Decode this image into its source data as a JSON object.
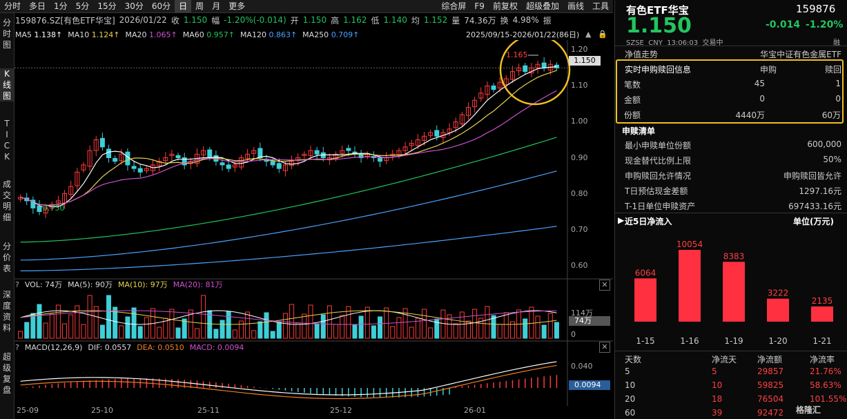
{
  "toolbar": {
    "items": [
      "分时",
      "多日",
      "1分",
      "5分",
      "15分",
      "30分",
      "60分",
      "日",
      "周",
      "月",
      "更多"
    ],
    "right": [
      "综合屏",
      "F9",
      "前复权",
      "超级叠加",
      "画线",
      "工具"
    ],
    "active": "日"
  },
  "sidebar": [
    "分时图",
    "K线图",
    "TICK",
    "成交明细",
    "分价表",
    "深度资料",
    "超级复盘"
  ],
  "header": {
    "code": "159876.SZ[有色ETF华宝]",
    "date": "2026/01/22",
    "close_label": "收",
    "close": "1.150",
    "change_label": "幅",
    "change": "-1.20%(-0.014)",
    "open_label": "开",
    "open": "1.150",
    "high_label": "高",
    "high": "1.162",
    "low_label": "低",
    "low": "1.140",
    "avg_label": "均",
    "avg": "1.152",
    "vol_label": "量",
    "vol": "74.36万",
    "turnover_label": "换",
    "turnover": "4.98%",
    "more": "振",
    "range": "2025/09/15-2026/01/22(86日)"
  },
  "ma": [
    {
      "label": "MA5",
      "value": "1.138↑",
      "color": "#ffffff"
    },
    {
      "label": "MA10",
      "value": "1.124↑",
      "color": "#e8d44d"
    },
    {
      "label": "MA20",
      "value": "1.065↑",
      "color": "#d050d0"
    },
    {
      "label": "MA60",
      "value": "0.957↑",
      "color": "#22c55e"
    },
    {
      "label": "MA120",
      "value": "0.863↑",
      "color": "#4aa3ff"
    },
    {
      "label": "MA250",
      "value": "0.709↑",
      "color": "#4aa3ff"
    }
  ],
  "price_axis": [
    "1.20",
    "1.10",
    "1.00",
    "0.90",
    "0.80",
    "0.70",
    "0.60"
  ],
  "price_current": "1.150",
  "annotations": {
    "high": "1.165",
    "low": "0.750"
  },
  "vol_panel": {
    "title": "VOL: 74万",
    "ma5": "MA(5): 90万",
    "ma10": "MA(10): 97万",
    "ma20": "MA(20): 81万",
    "axis_top": "114万",
    "current": "74万",
    "axis_bottom": "0"
  },
  "macd_panel": {
    "title": "MACD(12,26,9)",
    "dif": "DIF: 0.0557",
    "dea": "DEA: 0.0510",
    "macd": "MACD: 0.0094",
    "axis_top": "0.040",
    "current": "0.0094",
    "axis_mid": "0.000"
  },
  "x_axis": [
    "25-09",
    "25-10",
    "25-11",
    "25-12",
    "26-01"
  ],
  "chart_data": {
    "type": "candlestick",
    "ylim": [
      0.58,
      1.22
    ],
    "closes": [
      0.79,
      0.78,
      0.76,
      0.75,
      0.76,
      0.77,
      0.78,
      0.8,
      0.82,
      0.86,
      0.88,
      0.92,
      0.95,
      0.93,
      0.9,
      0.89,
      0.91,
      0.88,
      0.87,
      0.86,
      0.87,
      0.88,
      0.89,
      0.9,
      0.91,
      0.9,
      0.88,
      0.89,
      0.91,
      0.92,
      0.9,
      0.89,
      0.88,
      0.87,
      0.88,
      0.9,
      0.91,
      0.92,
      0.9,
      0.89,
      0.88,
      0.87,
      0.88,
      0.89,
      0.9,
      0.91,
      0.92,
      0.91,
      0.9,
      0.9,
      0.91,
      0.92,
      0.92,
      0.91,
      0.9,
      0.91,
      0.9,
      0.89,
      0.9,
      0.91,
      0.92,
      0.93,
      0.94,
      0.95,
      0.96,
      0.97,
      0.96,
      0.97,
      0.98,
      1.0,
      1.02,
      1.04,
      1.06,
      1.08,
      1.1,
      1.09,
      1.11,
      1.12,
      1.14,
      1.15,
      1.14,
      1.15,
      1.16,
      1.15,
      1.16,
      1.15
    ]
  },
  "right_panel": {
    "name": "有色ETF华宝",
    "code": "159876",
    "price": "1.150",
    "change": "-0.014",
    "change_pct": "-1.20%",
    "market": "SZSE",
    "currency": "CNY",
    "time": "13:06:03",
    "status": "交易中",
    "tag": "融",
    "nav_label": "净值走势",
    "index": "华宝中证有色金属ETF",
    "realtime": {
      "title": "实时申购赎回信息",
      "col1": "申购",
      "col2": "赎回",
      "rows": [
        {
          "k": "笔数",
          "a": "45",
          "b": "1"
        },
        {
          "k": "金额",
          "a": "0",
          "b": "0"
        },
        {
          "k": "份额",
          "a": "4440万",
          "b": "60万"
        }
      ]
    },
    "list_title": "申赎清单",
    "list": [
      {
        "k": "最小申赎单位份额",
        "v": "600,000"
      },
      {
        "k": "现金替代比例上限",
        "v": "50%"
      },
      {
        "k": "申购赎回允许情况",
        "v": "申购赎回皆允许"
      },
      {
        "k": "T日预估现金差额",
        "v": "1297.16元"
      },
      {
        "k": "T-1日单位申赎资产",
        "v": "697433.16元"
      }
    ],
    "flow_title": "近5日净流入",
    "flow_unit": "单位(万元)",
    "flow_bars": [
      {
        "d": "1-15",
        "v": 6064
      },
      {
        "d": "1-16",
        "v": 10054
      },
      {
        "d": "1-19",
        "v": 8383
      },
      {
        "d": "1-20",
        "v": 3222
      },
      {
        "d": "1-21",
        "v": 2135
      }
    ],
    "table_head": [
      "天数",
      "净流天",
      "净流额",
      "净流率"
    ],
    "table": [
      [
        "5",
        "5",
        "29857",
        "21.76%"
      ],
      [
        "10",
        "10",
        "59825",
        "58.63%"
      ],
      [
        "20",
        "18",
        "76504",
        "101.55%"
      ],
      [
        "60",
        "39",
        "92472",
        ""
      ]
    ],
    "watermark": "格隆汇"
  }
}
